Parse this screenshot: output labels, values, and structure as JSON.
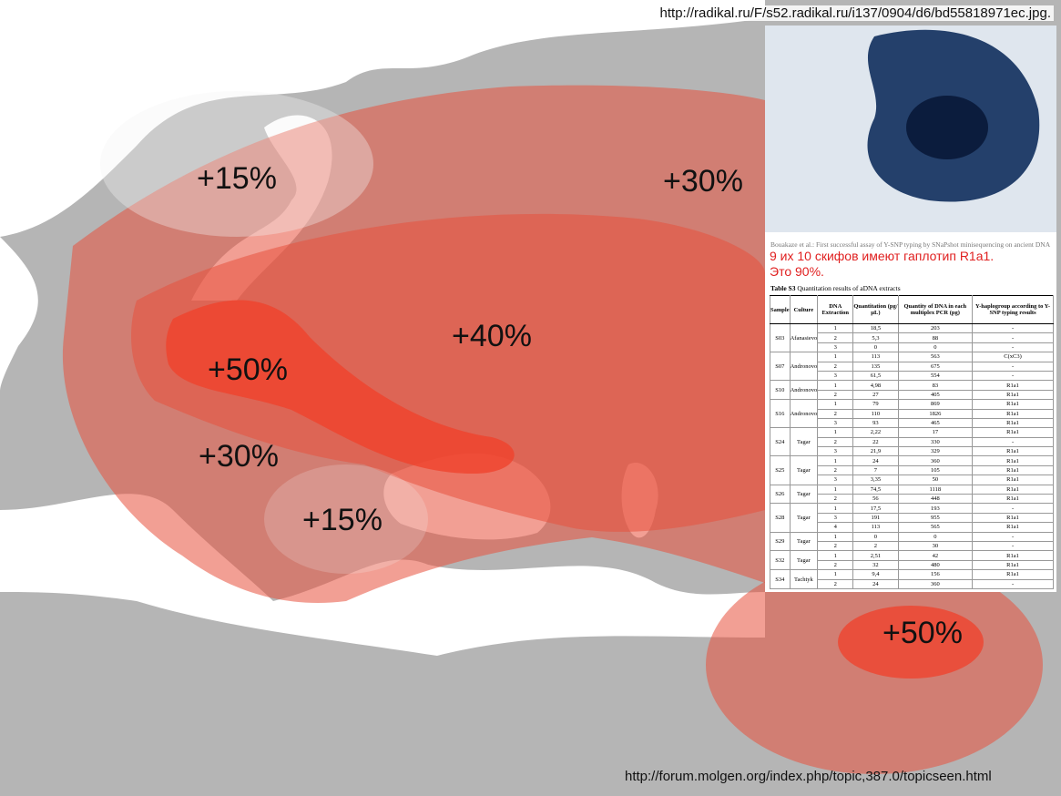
{
  "map": {
    "labels": [
      "+15%",
      "+30%",
      "+50%",
      "+40%",
      "+30%",
      "+15%",
      "+50%"
    ]
  },
  "source_top": "http://radikal.ru/F/s52.radikal.ru/i137/0904/d6/bd55818971ec.jpg.",
  "source_bottom": "http://forum.molgen.org/index.php/topic,387.0/topicseen.html",
  "inset": {
    "caption": "Bouakaze et al.: First successful assay of Y-SNP typing by SNaPshot minisequencing on ancient DNA",
    "note": [
      "9 их 10 скифов имеют гаплотип R1a1.",
      "Это 90%."
    ],
    "table": {
      "title_bold": "Table S3",
      "title": "Quantitation results of aDNA extracts",
      "headers": [
        "Sample",
        "Culture",
        "DNA Extraction",
        "Quantitation (pg/µL)",
        "Quantity of DNA in each multiplex PCR (pg)",
        "Y-haplogroup according to Y-SNP typing results"
      ],
      "groups": [
        {
          "sample": "S03",
          "culture": "Afanasievo",
          "rows": [
            [
              "1",
              "18,5",
              "203",
              "-"
            ],
            [
              "2",
              "5,3",
              "88",
              "-"
            ],
            [
              "3",
              "0",
              "0",
              "-"
            ]
          ]
        },
        {
          "sample": "S07",
          "culture": "Andronovo",
          "rows": [
            [
              "1",
              "113",
              "563",
              "C(xC3)"
            ],
            [
              "2",
              "135",
              "675",
              "-"
            ],
            [
              "3",
              "61,5",
              "554",
              "-"
            ]
          ]
        },
        {
          "sample": "S10",
          "culture": "Andronovo",
          "rows": [
            [
              "1",
              "4,98",
              "83",
              "R1a1"
            ],
            [
              "2",
              "27",
              "405",
              "R1a1"
            ]
          ]
        },
        {
          "sample": "S16",
          "culture": "Andronovo",
          "rows": [
            [
              "1",
              "79",
              "869",
              "R1a1"
            ],
            [
              "2",
              "110",
              "1826",
              "R1a1"
            ],
            [
              "3",
              "93",
              "465",
              "R1a1"
            ]
          ]
        },
        {
          "sample": "S24",
          "culture": "Tagar",
          "rows": [
            [
              "1",
              "2,22",
              "17",
              "R1a1"
            ],
            [
              "2",
              "22",
              "330",
              "-"
            ],
            [
              "3",
              "21,9",
              "329",
              "R1a1"
            ]
          ]
        },
        {
          "sample": "S25",
          "culture": "Tagar",
          "rows": [
            [
              "1",
              "24",
              "360",
              "R1a1"
            ],
            [
              "2",
              "7",
              "105",
              "R1a1"
            ],
            [
              "3",
              "3,35",
              "50",
              "R1a1"
            ]
          ]
        },
        {
          "sample": "S26",
          "culture": "Tagar",
          "rows": [
            [
              "1",
              "74,5",
              "1118",
              "R1a1"
            ],
            [
              "2",
              "56",
              "448",
              "R1a1"
            ]
          ]
        },
        {
          "sample": "S28",
          "culture": "Tagar",
          "rows": [
            [
              "1",
              "17,5",
              "193",
              "-"
            ],
            [
              "3",
              "191",
              "955",
              "R1a1"
            ],
            [
              "4",
              "113",
              "565",
              "R1a1"
            ]
          ]
        },
        {
          "sample": "S29",
          "culture": "Tagar",
          "rows": [
            [
              "1",
              "0",
              "0",
              "-"
            ],
            [
              "2",
              "2",
              "30",
              "-"
            ]
          ]
        },
        {
          "sample": "S32",
          "culture": "Tagar",
          "rows": [
            [
              "1",
              "2,51",
              "42",
              "R1a1"
            ],
            [
              "2",
              "32",
              "480",
              "R1a1"
            ]
          ]
        },
        {
          "sample": "S34",
          "culture": "Tachtyk",
          "rows": [
            [
              "1",
              "9,4",
              "156",
              "R1a1"
            ],
            [
              "2",
              "24",
              "360",
              "-"
            ]
          ]
        }
      ]
    }
  }
}
